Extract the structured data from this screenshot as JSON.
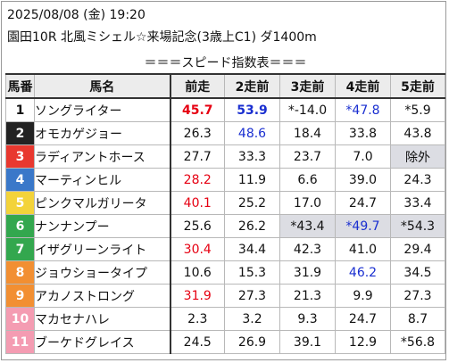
{
  "header": {
    "datetime": "2025/08/08 (金) 19:20",
    "race": "園田10R 北風ミシェル☆来場記念(3歳上C1) ダ1400m"
  },
  "table": {
    "title": "＝＝＝スピード指数表＝＝＝",
    "columns": [
      "馬番",
      "馬名",
      "前走",
      "2走前",
      "3走前",
      "4走前",
      "5走前"
    ],
    "rows": [
      {
        "num": "1",
        "num_bg": "#ffffff",
        "num_color": "#111111",
        "name": "ソングライター",
        "cells": [
          {
            "v": "45.7",
            "c": "#e60012",
            "b": true
          },
          {
            "v": "53.9",
            "c": "#1a2fd0",
            "b": true
          },
          {
            "v": "*-14.0"
          },
          {
            "v": "*47.8",
            "c": "#1a2fd0"
          },
          {
            "v": "*5.9"
          }
        ]
      },
      {
        "num": "2",
        "num_bg": "#222222",
        "num_color": "#ffffff",
        "name": "オモカゲジョー",
        "cells": [
          {
            "v": "26.3"
          },
          {
            "v": "48.6",
            "c": "#1a2fd0"
          },
          {
            "v": "18.4"
          },
          {
            "v": "33.8"
          },
          {
            "v": "43.8"
          }
        ]
      },
      {
        "num": "3",
        "num_bg": "#e8382f",
        "num_color": "#ffffff",
        "name": "ラディアントホース",
        "cells": [
          {
            "v": "27.7"
          },
          {
            "v": "33.3"
          },
          {
            "v": "23.7"
          },
          {
            "v": "7.0"
          },
          {
            "v": "除外",
            "s": true
          }
        ]
      },
      {
        "num": "4",
        "num_bg": "#3a78c9",
        "num_color": "#ffffff",
        "name": "マーティンヒル",
        "cells": [
          {
            "v": "28.2",
            "c": "#e60012"
          },
          {
            "v": "11.9"
          },
          {
            "v": "6.6"
          },
          {
            "v": "39.0"
          },
          {
            "v": "24.3"
          }
        ]
      },
      {
        "num": "5",
        "num_bg": "#f3d33a",
        "num_color": "#ffffff",
        "name": "ピンクマルガリータ",
        "cells": [
          {
            "v": "40.1",
            "c": "#e60012"
          },
          {
            "v": "25.2"
          },
          {
            "v": "17.0"
          },
          {
            "v": "24.7"
          },
          {
            "v": "33.4"
          }
        ]
      },
      {
        "num": "6",
        "num_bg": "#33a74e",
        "num_color": "#ffffff",
        "name": "ナンナンプー",
        "cells": [
          {
            "v": "25.6"
          },
          {
            "v": "26.2"
          },
          {
            "v": "*43.4",
            "s": true
          },
          {
            "v": "*49.7",
            "c": "#1a2fd0",
            "s": true
          },
          {
            "v": "*54.3",
            "s": true
          }
        ]
      },
      {
        "num": "7",
        "num_bg": "#33a74e",
        "num_color": "#ffffff",
        "name": "イザグリーンライト",
        "cells": [
          {
            "v": "30.4",
            "c": "#e60012"
          },
          {
            "v": "34.4"
          },
          {
            "v": "42.3"
          },
          {
            "v": "41.0"
          },
          {
            "v": "29.4"
          }
        ]
      },
      {
        "num": "8",
        "num_bg": "#f28f32",
        "num_color": "#ffffff",
        "name": "ジョウショータイプ",
        "cells": [
          {
            "v": "10.6"
          },
          {
            "v": "15.3"
          },
          {
            "v": "31.9"
          },
          {
            "v": "46.2",
            "c": "#1a2fd0"
          },
          {
            "v": "34.5"
          }
        ]
      },
      {
        "num": "9",
        "num_bg": "#f28f32",
        "num_color": "#ffffff",
        "name": "アカノストロング",
        "cells": [
          {
            "v": "31.9",
            "c": "#e60012"
          },
          {
            "v": "27.3"
          },
          {
            "v": "21.3"
          },
          {
            "v": "9.9"
          },
          {
            "v": "27.3"
          }
        ]
      },
      {
        "num": "10",
        "num_bg": "#f49cb2",
        "num_color": "#ffffff",
        "name": "マカセナハレ",
        "cells": [
          {
            "v": "2.3"
          },
          {
            "v": "3.2"
          },
          {
            "v": "9.3"
          },
          {
            "v": "24.7"
          },
          {
            "v": "8.7"
          }
        ]
      },
      {
        "num": "11",
        "num_bg": "#f49cb2",
        "num_color": "#ffffff",
        "name": "ブーケドグレイス",
        "cells": [
          {
            "v": "24.5"
          },
          {
            "v": "26.9"
          },
          {
            "v": "39.1"
          },
          {
            "v": "12.9"
          },
          {
            "v": "*56.8"
          }
        ]
      }
    ]
  }
}
